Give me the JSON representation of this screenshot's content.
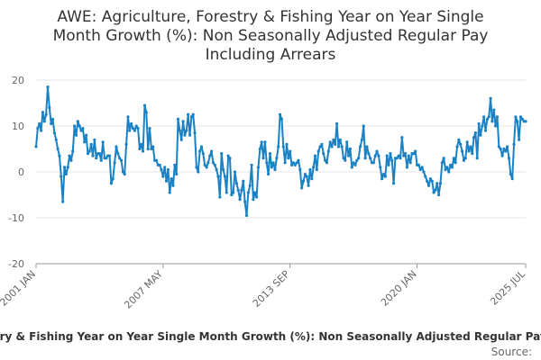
{
  "chart_data": {
    "type": "line",
    "title_lines": [
      "AWE: Agriculture, Forestry & Fishing Year on Year Single",
      "Month Growth (%): Non Seasonally Adjusted Regular Pay",
      "Including Arrears"
    ],
    "ylim": [
      -20,
      20
    ],
    "y_ticks": [
      "-20",
      "-10",
      "0",
      "10",
      "20"
    ],
    "x_ticks": [
      "2001 JAN",
      "2007 MAY",
      "2013 SEP",
      "2020 JAN",
      "2025 JUL"
    ],
    "series": [
      {
        "name": "Agriculture, Forestry & Fishing Year on Year Single Month Growth (%): Non Seasonally Adjusted Regular Pay Including Arrears",
        "color": "#1a82c4",
        "values": [
          5.5,
          9.5,
          10.5,
          9,
          13,
          11,
          12.5,
          18.5,
          14,
          10.5,
          11.5,
          8.5,
          7,
          5,
          3.5,
          -1,
          -6.5,
          1,
          -0.5,
          1,
          3.5,
          2.5,
          4.5,
          10,
          8,
          11,
          10,
          9,
          9.5,
          6.5,
          8,
          4,
          4.5,
          6,
          3.5,
          7,
          3,
          4,
          4,
          2.5,
          6.5,
          3,
          3,
          3.5,
          3.5,
          -2.5,
          -1.5,
          2,
          5.5,
          4,
          3,
          2.5,
          0,
          -0.5,
          6,
          12,
          9,
          10.5,
          9.5,
          9,
          10,
          9.5,
          5,
          6,
          4.5,
          14.5,
          13,
          5,
          9.5,
          5,
          5.5,
          2.5,
          2.5,
          1.5,
          1.5,
          0.5,
          -1,
          1,
          -2,
          0.5,
          -4.5,
          -1.5,
          -3,
          1.5,
          -0.5,
          11.5,
          9,
          7,
          11,
          8,
          9,
          12.5,
          8,
          12,
          12.5,
          8.5,
          1,
          0,
          4.5,
          5.5,
          4,
          1.5,
          1,
          2,
          3.5,
          4.5,
          2,
          1.5,
          0.5,
          -1,
          -5.5,
          4,
          0.5,
          -1,
          -4.5,
          3.5,
          3,
          -5,
          -4.5,
          0,
          -2.5,
          -4,
          -6,
          -4,
          -2,
          -6.5,
          -9.5,
          -4.5,
          -3,
          1.5,
          -6,
          -4.5,
          -5.5,
          1,
          5,
          6.5,
          3,
          6.5,
          2,
          -0.5,
          4,
          1,
          2,
          0.5,
          3,
          5.5,
          12.5,
          11.5,
          5.5,
          2,
          6,
          3,
          4.5,
          1.5,
          2,
          1.5,
          2,
          2.5,
          0.5,
          -3.5,
          -2,
          -0.5,
          -1,
          -3,
          0.5,
          -1.5,
          1,
          3.5,
          0.5,
          4.5,
          5.5,
          6,
          4,
          2.5,
          2,
          4.5,
          6.5,
          5.5,
          7,
          6,
          10.5,
          5.5,
          7,
          5.5,
          3,
          2.5,
          6.5,
          3.5,
          5,
          1,
          2,
          1.5,
          2.5,
          3,
          5.5,
          7,
          10,
          3,
          5.5,
          4,
          3,
          2,
          2,
          3.5,
          4.5,
          3.5,
          1,
          -1.5,
          -0.5,
          -1,
          3.5,
          1.5,
          4,
          2.5,
          -2.5,
          3,
          3,
          3.5,
          3,
          7.5,
          3.5,
          4,
          1,
          3.5,
          2,
          4,
          4,
          4.5,
          1.5,
          1.5,
          0.5,
          1,
          0,
          -1,
          -2,
          -3,
          -1.5,
          -2,
          -4.5,
          -4,
          -2.5,
          -5,
          -2.5,
          2,
          3,
          0.5,
          1,
          0,
          1.5,
          1,
          3,
          2,
          5.5,
          7,
          6,
          4.5,
          2.5,
          3,
          6.5,
          4.5,
          5.5,
          4,
          7.5,
          8.5,
          3,
          10.5,
          8,
          10,
          12,
          9,
          11.5,
          12,
          16,
          11,
          13.5,
          10,
          12,
          5.5,
          5,
          3.5,
          5,
          4.5,
          5.5,
          3,
          -0.5,
          -1.5,
          6,
          12,
          11,
          7,
          12,
          11.5,
          11,
          11
        ]
      }
    ],
    "legend_text": "Agriculture, Forestry & Fishing Year on Year Single Month Growth (%): Non Seasonally Adjusted Regular Pay Including Arrears",
    "source_label": "Source:"
  },
  "colors": {
    "line": "#1a82c4",
    "grid": "#e6e6e6",
    "axis": "#999999"
  }
}
